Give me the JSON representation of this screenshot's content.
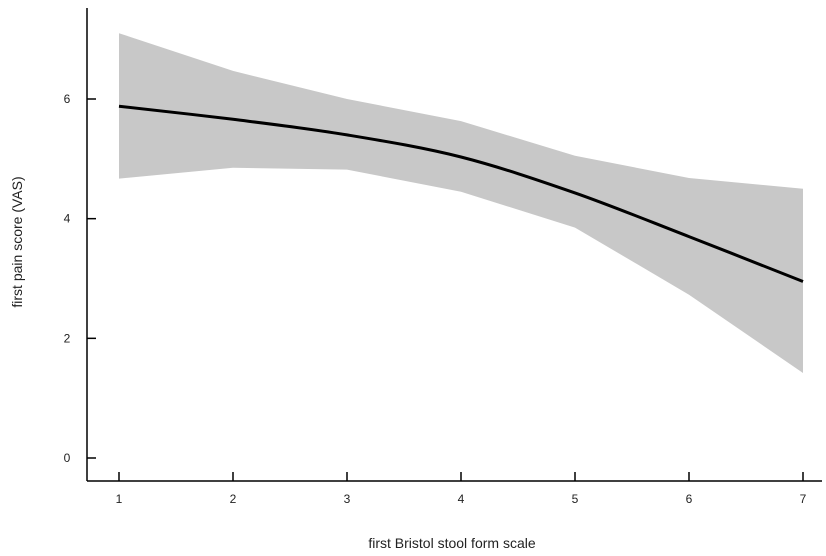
{
  "chart_data": {
    "type": "line",
    "title": "",
    "xlabel": "first Bristol stool form scale",
    "ylabel": "first pain score (VAS)",
    "x": [
      1,
      2,
      3,
      4,
      5,
      6,
      7
    ],
    "xticks": [
      "1",
      "2",
      "3",
      "4",
      "5",
      "6",
      "7"
    ],
    "yticks": [
      "0",
      "2",
      "4",
      "6"
    ],
    "xlim": [
      0.7,
      7.2
    ],
    "ylim": [
      -0.3,
      7.5
    ],
    "grid": false,
    "series": [
      {
        "values": [
          5.88,
          5.66,
          5.4,
          5.03,
          4.43,
          3.7,
          2.95
        ],
        "band_upper": [
          7.1,
          6.47,
          6.0,
          5.63,
          5.05,
          4.68,
          4.5
        ],
        "band_lower": [
          4.67,
          4.85,
          4.82,
          4.45,
          3.85,
          2.73,
          1.42
        ]
      }
    ],
    "colors": {
      "line": "#000000",
      "band": "#c8c8c8",
      "axis": "#000000"
    }
  }
}
